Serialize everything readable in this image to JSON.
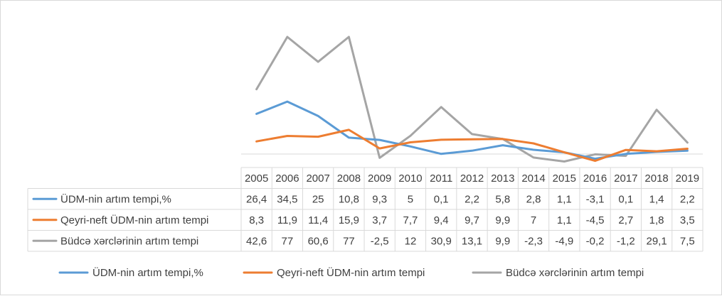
{
  "chart_data": {
    "type": "line",
    "title": "",
    "xlabel": "",
    "ylabel": "",
    "ylim": [
      -5,
      80
    ],
    "grid": false,
    "legend_position": "bottom",
    "has_data_table": true,
    "categories": [
      "2005",
      "2006",
      "2007",
      "2008",
      "2009",
      "2010",
      "2011",
      "2012",
      "2013",
      "2014",
      "2015",
      "2016",
      "2017",
      "2018",
      "2019"
    ],
    "series": [
      {
        "name": "ÜDM-nin artım tempi,%",
        "color": "#5b9bd5",
        "values": [
          26.4,
          34.5,
          25,
          10.8,
          9.3,
          5,
          0.1,
          2.2,
          5.8,
          2.8,
          1.1,
          -3.1,
          0.1,
          1.4,
          2.2
        ],
        "labels": [
          "26,4",
          "34,5",
          "25",
          "10,8",
          "9,3",
          "5",
          "0,1",
          "2,2",
          "5,8",
          "2,8",
          "1,1",
          "-3,1",
          "0,1",
          "1,4",
          "2,2"
        ]
      },
      {
        "name": "Qeyri-neft ÜDM-nin artım tempi",
        "color": "#ed7d31",
        "values": [
          8.3,
          11.9,
          11.4,
          15.9,
          3.7,
          7.7,
          9.4,
          9.7,
          9.9,
          7,
          1.1,
          -4.5,
          2.7,
          1.8,
          3.5
        ],
        "labels": [
          "8,3",
          "11,9",
          "11,4",
          "15,9",
          "3,7",
          "7,7",
          "9,4",
          "9,7",
          "9,9",
          "7",
          "1,1",
          "-4,5",
          "2,7",
          "1,8",
          "3,5"
        ]
      },
      {
        "name": "Büdcə xərclərinin artım tempi",
        "color": "#a5a5a5",
        "values": [
          42.6,
          77,
          60.6,
          77,
          -2.5,
          12,
          30.9,
          13.1,
          9.9,
          -2.3,
          -4.9,
          -0.2,
          -1.2,
          29.1,
          7.5
        ],
        "labels": [
          "42,6",
          "77",
          "60,6",
          "77",
          "-2,5",
          "12",
          "30,9",
          "13,1",
          "9,9",
          "-2,3",
          "-4,9",
          "-0,2",
          "-1,2",
          "29,1",
          "7,5"
        ]
      }
    ]
  }
}
